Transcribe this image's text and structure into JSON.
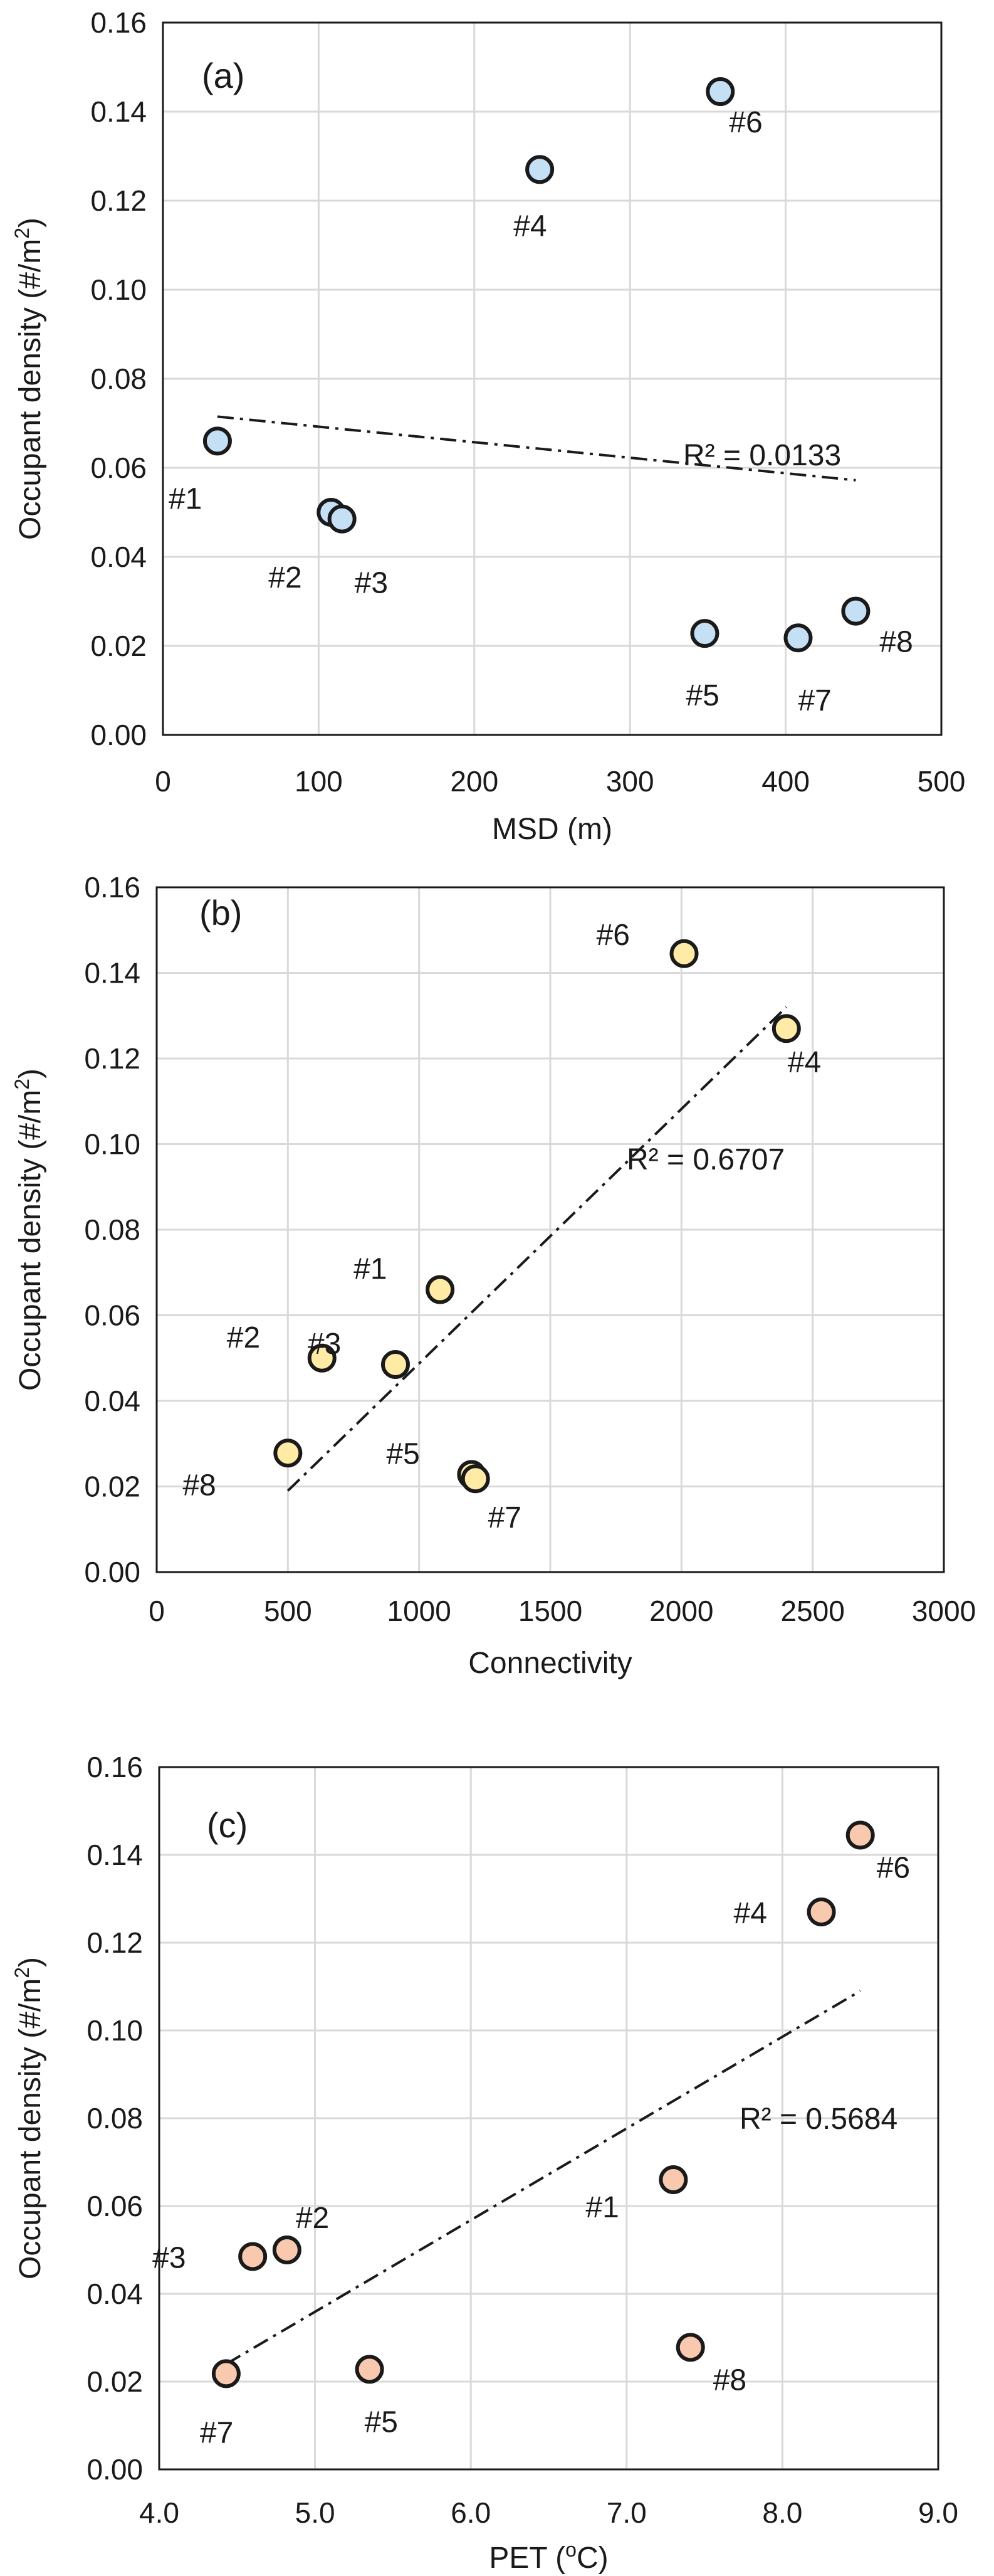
{
  "chart_data": [
    {
      "type": "scatter",
      "panel": "(a)",
      "xlabel": "MSD (m)",
      "ylabel": "Occupant density (#/m",
      "ylabel_sup": "2",
      "ylabel_end": ")",
      "xlim": [
        0,
        500
      ],
      "ylim": [
        0,
        0.16
      ],
      "xticks": [
        0,
        100,
        200,
        300,
        400,
        500
      ],
      "xtick_labels": [
        "0",
        "100",
        "200",
        "300",
        "400",
        "500"
      ],
      "yticks": [
        0,
        0.02,
        0.04,
        0.06,
        0.08,
        0.1,
        0.12,
        0.14,
        0.16
      ],
      "ytick_labels": [
        "0.00",
        "0.02",
        "0.04",
        "0.06",
        "0.08",
        "0.10",
        "0.12",
        "0.14",
        "0.16"
      ],
      "marker_color": "#c5dff5",
      "points": [
        {
          "label": "#1",
          "x": 35,
          "y": 0.066
        },
        {
          "label": "#2",
          "x": 108,
          "y": 0.05
        },
        {
          "label": "#3",
          "x": 115,
          "y": 0.0485
        },
        {
          "label": "#4",
          "x": 242,
          "y": 0.127
        },
        {
          "label": "#5",
          "x": 348,
          "y": 0.0228
        },
        {
          "label": "#6",
          "x": 358,
          "y": 0.1445
        },
        {
          "label": "#7",
          "x": 408,
          "y": 0.0218
        },
        {
          "label": "#8",
          "x": 445,
          "y": 0.0278
        }
      ],
      "trendline": {
        "x": [
          35,
          445
        ],
        "y": [
          0.0715,
          0.0572
        ]
      },
      "r2_text": "R² = 0.0133"
    },
    {
      "type": "scatter",
      "panel": "(b)",
      "xlabel": "Connectivity",
      "ylabel": "Occupant density (#/m",
      "ylabel_sup": "2",
      "ylabel_end": ")",
      "xlim": [
        0,
        3000
      ],
      "ylim": [
        0,
        0.16
      ],
      "xticks": [
        0,
        500,
        1000,
        1500,
        2000,
        2500,
        3000
      ],
      "xtick_labels": [
        "0",
        "500",
        "1000",
        "1500",
        "2000",
        "2500",
        "3000"
      ],
      "yticks": [
        0,
        0.02,
        0.04,
        0.06,
        0.08,
        0.1,
        0.12,
        0.14,
        0.16
      ],
      "ytick_labels": [
        "0.00",
        "0.02",
        "0.04",
        "0.06",
        "0.08",
        "0.10",
        "0.12",
        "0.14",
        "0.16"
      ],
      "marker_color": "#ffeaa6",
      "points": [
        {
          "label": "#1",
          "x": 1080,
          "y": 0.066
        },
        {
          "label": "#2",
          "x": 630,
          "y": 0.05
        },
        {
          "label": "#3",
          "x": 910,
          "y": 0.0485
        },
        {
          "label": "#4",
          "x": 2400,
          "y": 0.127
        },
        {
          "label": "#5",
          "x": 1200,
          "y": 0.0228
        },
        {
          "label": "#6",
          "x": 2010,
          "y": 0.1445
        },
        {
          "label": "#7",
          "x": 1215,
          "y": 0.0218
        },
        {
          "label": "#8",
          "x": 500,
          "y": 0.0278
        }
      ],
      "trendline": {
        "x": [
          500,
          2400
        ],
        "y": [
          0.019,
          0.132
        ]
      },
      "r2_text": "R² = 0.6707"
    },
    {
      "type": "scatter",
      "panel": "(c)",
      "xlabel": "PET (",
      "xlabel_sup": "o",
      "xlabel_end": "C)",
      "ylabel": "Occupant density (#/m",
      "ylabel_sup": "2",
      "ylabel_end": ")",
      "xlim": [
        4.0,
        9.0
      ],
      "ylim": [
        0,
        0.16
      ],
      "xticks": [
        4.0,
        5.0,
        6.0,
        7.0,
        8.0,
        9.0
      ],
      "xtick_labels": [
        "4.0",
        "5.0",
        "6.0",
        "7.0",
        "8.0",
        "9.0"
      ],
      "yticks": [
        0,
        0.02,
        0.04,
        0.06,
        0.08,
        0.1,
        0.12,
        0.14,
        0.16
      ],
      "ytick_labels": [
        "0.00",
        "0.02",
        "0.04",
        "0.06",
        "0.08",
        "0.10",
        "0.12",
        "0.14",
        "0.16"
      ],
      "marker_color": "#f8c9ae",
      "points": [
        {
          "label": "#1",
          "x": 7.3,
          "y": 0.066
        },
        {
          "label": "#2",
          "x": 4.82,
          "y": 0.05
        },
        {
          "label": "#3",
          "x": 4.6,
          "y": 0.0485
        },
        {
          "label": "#4",
          "x": 8.25,
          "y": 0.127
        },
        {
          "label": "#5",
          "x": 5.35,
          "y": 0.0228
        },
        {
          "label": "#6",
          "x": 8.5,
          "y": 0.1445
        },
        {
          "label": "#7",
          "x": 4.43,
          "y": 0.0218
        },
        {
          "label": "#8",
          "x": 7.41,
          "y": 0.0278
        }
      ],
      "trendline": {
        "x": [
          4.43,
          8.5
        ],
        "y": [
          0.024,
          0.109
        ]
      },
      "r2_text": "R² = 0.5684"
    }
  ]
}
